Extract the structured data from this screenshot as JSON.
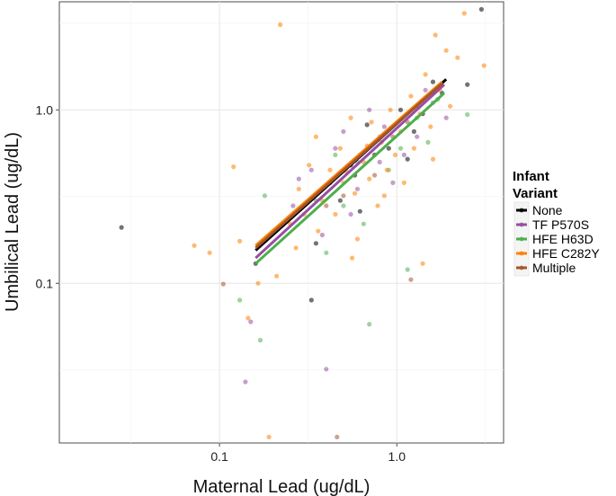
{
  "chart_data": {
    "type": "scatter",
    "xlabel": "Maternal Lead (ug/dL)",
    "ylabel": "Umbilical Lead (ug/dL)",
    "xscale": "log",
    "yscale": "log",
    "xlim": [
      0.0125,
      4.0
    ],
    "ylim": [
      0.012,
      4.2
    ],
    "xticks": [
      0.1,
      1.0
    ],
    "xtick_labels": [
      "0.1",
      "1.0"
    ],
    "yticks": [
      0.1,
      1.0
    ],
    "ytick_labels": [
      "0.1",
      "1.0"
    ],
    "grid": true,
    "legend": {
      "title_lines": [
        "Infant",
        "Variant"
      ],
      "position": "right",
      "entries": [
        "None",
        "TF P570S",
        "HFE H63D",
        "HFE C282Y",
        "Multiple"
      ]
    },
    "series": [
      {
        "name": "None",
        "color": "#000000",
        "line": {
          "x": [
            0.16,
            1.9
          ],
          "y": [
            0.155,
            1.5
          ]
        },
        "points": [
          [
            0.028,
            0.21
          ],
          [
            0.16,
            0.13
          ],
          [
            3.0,
            3.8
          ],
          [
            2.5,
            1.4
          ],
          [
            0.33,
            0.08
          ],
          [
            1.4,
            0.95
          ],
          [
            1.6,
            1.45
          ],
          [
            0.55,
            0.48
          ],
          [
            0.75,
            0.55
          ],
          [
            0.42,
            0.38
          ],
          [
            0.62,
            0.26
          ],
          [
            0.9,
            0.6
          ],
          [
            1.15,
            0.52
          ],
          [
            0.48,
            0.3
          ],
          [
            0.35,
            0.17
          ],
          [
            1.05,
            1.0
          ],
          [
            1.8,
            1.25
          ],
          [
            0.68,
            0.82
          ],
          [
            1.25,
            0.75
          ],
          [
            0.58,
            0.42
          ]
        ]
      },
      {
        "name": "TF P570S",
        "color": "#984ea3",
        "line": {
          "x": [
            0.16,
            1.85
          ],
          "y": [
            0.14,
            1.4
          ]
        },
        "points": [
          [
            0.14,
            0.027
          ],
          [
            0.15,
            0.06
          ],
          [
            0.4,
            0.032
          ],
          [
            0.55,
            0.25
          ],
          [
            0.28,
            0.4
          ],
          [
            0.85,
            0.8
          ],
          [
            1.3,
            0.7
          ],
          [
            0.45,
            0.6
          ],
          [
            0.6,
            0.35
          ],
          [
            0.8,
            0.5
          ],
          [
            1.9,
            0.9
          ],
          [
            0.33,
            0.45
          ],
          [
            0.7,
            1.0
          ],
          [
            1.6,
            1.1
          ],
          [
            0.38,
            0.19
          ],
          [
            1.1,
            0.55
          ],
          [
            0.5,
            0.75
          ],
          [
            0.95,
            0.38
          ],
          [
            0.26,
            0.28
          ],
          [
            1.45,
            1.3
          ]
        ]
      },
      {
        "name": "HFE H63D",
        "color": "#4daf4a",
        "line": {
          "x": [
            0.16,
            1.85
          ],
          "y": [
            0.13,
            1.25
          ]
        },
        "points": [
          [
            0.13,
            0.08
          ],
          [
            0.17,
            0.047
          ],
          [
            0.7,
            0.058
          ],
          [
            1.15,
            0.12
          ],
          [
            2.5,
            0.94
          ],
          [
            0.18,
            0.32
          ],
          [
            0.4,
            0.15
          ],
          [
            0.6,
            0.5
          ],
          [
            0.9,
            0.45
          ],
          [
            1.3,
            0.9
          ],
          [
            0.5,
            0.28
          ],
          [
            0.8,
            0.7
          ],
          [
            1.7,
            1.15
          ],
          [
            0.35,
            0.3
          ],
          [
            1.05,
            0.6
          ],
          [
            0.65,
            0.22
          ],
          [
            0.45,
            0.55
          ],
          [
            1.5,
            0.65
          ]
        ]
      },
      {
        "name": "HFE C282Y",
        "color": "#ff7f00",
        "line": {
          "x": [
            0.16,
            1.8
          ],
          "y": [
            0.165,
            1.45
          ]
        },
        "points": [
          [
            0.072,
            0.165
          ],
          [
            0.088,
            0.15
          ],
          [
            0.12,
            0.47
          ],
          [
            0.13,
            0.175
          ],
          [
            0.145,
            0.063
          ],
          [
            0.165,
            0.1
          ],
          [
            0.19,
            0.013
          ],
          [
            0.21,
            0.11
          ],
          [
            0.22,
            3.1
          ],
          [
            0.25,
            0.22
          ],
          [
            0.28,
            0.35
          ],
          [
            0.3,
            0.25
          ],
          [
            0.32,
            0.48
          ],
          [
            0.35,
            0.7
          ],
          [
            0.38,
            0.3
          ],
          [
            0.42,
            0.45
          ],
          [
            0.45,
            0.25
          ],
          [
            0.48,
            0.6
          ],
          [
            0.5,
            0.38
          ],
          [
            0.55,
            0.9
          ],
          [
            0.58,
            0.33
          ],
          [
            0.6,
            0.18
          ],
          [
            0.65,
            0.5
          ],
          [
            0.7,
            0.4
          ],
          [
            0.72,
            0.85
          ],
          [
            0.78,
            0.28
          ],
          [
            0.82,
            0.65
          ],
          [
            0.88,
            0.45
          ],
          [
            0.92,
            1.0
          ],
          [
            0.98,
            0.55
          ],
          [
            1.05,
            0.75
          ],
          [
            1.1,
            0.38
          ],
          [
            1.2,
            1.2
          ],
          [
            1.25,
            0.6
          ],
          [
            1.35,
            0.95
          ],
          [
            1.45,
            1.6
          ],
          [
            1.55,
            0.8
          ],
          [
            1.65,
            2.7
          ],
          [
            1.75,
            1.3
          ],
          [
            2.0,
            1.05
          ],
          [
            2.2,
            2.0
          ],
          [
            2.4,
            3.6
          ],
          [
            3.1,
            1.8
          ],
          [
            1.9,
            2.2
          ],
          [
            0.27,
            0.16
          ],
          [
            0.36,
            0.2
          ],
          [
            0.56,
            0.14
          ],
          [
            1.4,
            0.13
          ],
          [
            0.68,
            0.62
          ],
          [
            0.52,
            0.44
          ],
          [
            0.85,
            0.32
          ],
          [
            1.6,
            0.52
          ]
        ]
      },
      {
        "name": "Multiple",
        "color": "#a6542a",
        "line": {
          "x": [
            0.16,
            1.8
          ],
          "y": [
            0.16,
            1.42
          ]
        },
        "points": [
          [
            0.105,
            0.099
          ],
          [
            0.46,
            0.013
          ],
          [
            1.2,
            0.105
          ],
          [
            0.62,
            0.55
          ],
          [
            0.95,
            0.7
          ],
          [
            0.4,
            0.28
          ],
          [
            1.3,
            1.05
          ],
          [
            0.75,
            0.42
          ],
          [
            0.5,
            0.32
          ],
          [
            1.15,
            0.85
          ]
        ]
      }
    ]
  }
}
